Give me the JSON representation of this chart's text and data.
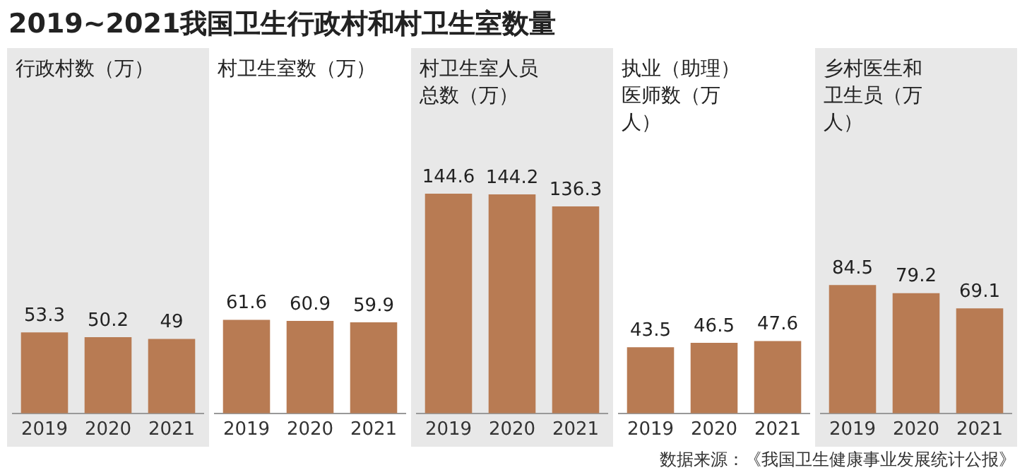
{
  "chart_data": [
    {
      "type": "bar",
      "title": "行政村数（万）",
      "annotations": [
        "2019~2021我国卫生行政村和村卫生室数量"
      ],
      "categories": [
        "2019",
        "2020",
        "2021"
      ],
      "values": [
        53.3,
        50.2,
        49
      ],
      "color": "#b87b53",
      "data_labels": true,
      "grid": false,
      "tick_labels": "x"
    },
    {
      "type": "bar",
      "title": "村卫生室数（万）",
      "categories": [
        "2019",
        "2020",
        "2021"
      ],
      "values": [
        61.6,
        60.9,
        59.9
      ],
      "color": "#b87b53",
      "data_labels": true,
      "grid": false,
      "tick_labels": "x"
    },
    {
      "type": "bar",
      "title": "村卫生室人员总数（万）",
      "categories": [
        "2019",
        "2020",
        "2021"
      ],
      "values": [
        144.6,
        144.2,
        136.3
      ],
      "color": "#b87b53",
      "data_labels": true,
      "grid": false,
      "tick_labels": "x"
    },
    {
      "type": "bar",
      "title": "执业（助理）医师数（万人）",
      "categories": [
        "2019",
        "2020",
        "2021"
      ],
      "values": [
        43.5,
        46.5,
        47.6
      ],
      "color": "#b87b53",
      "data_labels": true,
      "grid": false,
      "tick_labels": "x"
    },
    {
      "type": "bar",
      "title": "乡村医生和卫生员（万人）",
      "annotations": [
        "数据来源：《我国卫生健康事业发展统计公报》"
      ],
      "categories": [
        "2019",
        "2020",
        "2021"
      ],
      "values": [
        84.5,
        79.2,
        69.1
      ],
      "color": "#b87b53",
      "data_labels": true,
      "grid": false,
      "tick_labels": "x"
    }
  ]
}
